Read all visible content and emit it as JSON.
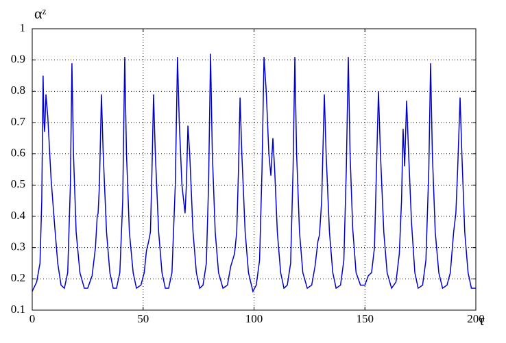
{
  "chart_data": {
    "type": "line",
    "ylabel": "αᶻ",
    "xlabel": "τ",
    "xlim": [
      0,
      200
    ],
    "xticks": [
      0,
      50,
      100,
      150,
      200
    ],
    "ylim": [
      0.1,
      1
    ],
    "yticks": [
      0.1,
      0.2,
      0.3,
      0.4,
      0.5,
      0.6,
      0.7,
      0.8,
      0.9,
      1
    ],
    "grid": true,
    "series": [
      {
        "color": "#0000cc",
        "x": [
          0,
          2,
          3.5,
          4.3,
          4.9,
          5.3,
          5.6,
          6.2,
          7,
          8.5,
          10,
          11.5,
          13,
          14.5,
          16,
          17.2,
          17.9,
          18.6,
          19.8,
          21.5,
          23.5,
          25,
          27,
          28.5,
          29.3,
          29.7,
          30.3,
          31.2,
          32,
          33.5,
          35,
          36.5,
          38,
          39.5,
          40.8,
          41.7,
          42.5,
          43.8,
          45.5,
          47,
          49,
          50.5,
          51.5,
          52.5,
          53.3,
          54,
          54.7,
          55.5,
          57,
          58.5,
          60,
          61.5,
          63,
          64.5,
          65.5,
          66.3,
          67.5,
          68.9,
          69.5,
          70.2,
          71,
          72.5,
          74,
          75.5,
          77,
          78.5,
          79.5,
          80.4,
          81.2,
          82.5,
          84,
          86,
          88,
          89.5,
          91.2,
          92.2,
          93,
          93.7,
          94.5,
          96,
          97.5,
          99.5,
          101,
          102.5,
          103.6,
          104.5,
          105.5,
          106.7,
          107.6,
          108.5,
          109.3,
          110.5,
          112,
          113.5,
          115,
          116.5,
          117.6,
          118.4,
          119.2,
          120.5,
          122,
          124,
          126,
          127.5,
          128.8,
          129.5,
          130.5,
          131.7,
          132.5,
          134,
          135.5,
          137,
          139,
          140.5,
          141.6,
          142.5,
          143.3,
          144.5,
          146,
          148,
          150,
          151.5,
          153,
          154.3,
          155.2,
          156.1,
          157,
          158.5,
          160,
          162,
          164,
          165.5,
          166.5,
          167.2,
          167.9,
          168.8,
          169.7,
          171,
          172.5,
          174,
          176,
          177.5,
          178.8,
          179.6,
          180.4,
          181.7,
          183.3,
          185,
          187,
          188.5,
          190,
          191,
          191.8,
          192.9,
          193.7,
          195,
          196.5,
          198,
          200
        ],
        "values": [
          0.16,
          0.19,
          0.25,
          0.45,
          0.85,
          0.7,
          0.67,
          0.79,
          0.72,
          0.52,
          0.38,
          0.25,
          0.18,
          0.17,
          0.22,
          0.5,
          0.89,
          0.6,
          0.35,
          0.22,
          0.17,
          0.17,
          0.21,
          0.3,
          0.4,
          0.41,
          0.5,
          0.79,
          0.6,
          0.35,
          0.22,
          0.17,
          0.17,
          0.22,
          0.45,
          0.91,
          0.6,
          0.35,
          0.22,
          0.17,
          0.18,
          0.22,
          0.29,
          0.32,
          0.35,
          0.55,
          0.79,
          0.6,
          0.35,
          0.22,
          0.17,
          0.17,
          0.22,
          0.5,
          0.91,
          0.7,
          0.5,
          0.41,
          0.5,
          0.69,
          0.6,
          0.35,
          0.22,
          0.17,
          0.18,
          0.25,
          0.5,
          0.92,
          0.6,
          0.35,
          0.22,
          0.17,
          0.18,
          0.24,
          0.28,
          0.35,
          0.55,
          0.78,
          0.6,
          0.35,
          0.22,
          0.16,
          0.18,
          0.26,
          0.55,
          0.91,
          0.8,
          0.6,
          0.53,
          0.65,
          0.55,
          0.35,
          0.22,
          0.17,
          0.18,
          0.25,
          0.55,
          0.91,
          0.6,
          0.35,
          0.22,
          0.17,
          0.18,
          0.24,
          0.32,
          0.34,
          0.45,
          0.79,
          0.6,
          0.35,
          0.22,
          0.17,
          0.18,
          0.26,
          0.55,
          0.91,
          0.6,
          0.36,
          0.22,
          0.18,
          0.18,
          0.21,
          0.22,
          0.3,
          0.55,
          0.8,
          0.6,
          0.35,
          0.22,
          0.17,
          0.19,
          0.28,
          0.45,
          0.68,
          0.56,
          0.77,
          0.6,
          0.38,
          0.22,
          0.17,
          0.18,
          0.26,
          0.55,
          0.89,
          0.6,
          0.35,
          0.22,
          0.17,
          0.18,
          0.22,
          0.35,
          0.41,
          0.55,
          0.78,
          0.6,
          0.35,
          0.22,
          0.17,
          0.17
        ]
      }
    ]
  }
}
